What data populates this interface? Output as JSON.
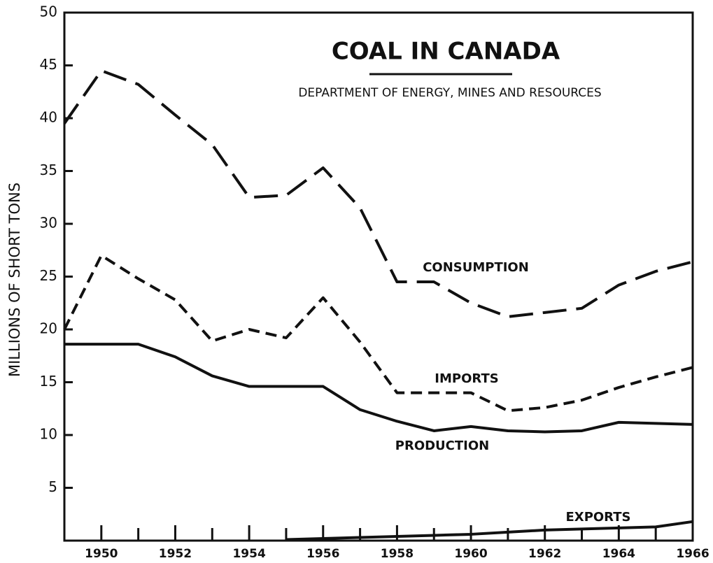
{
  "chart_data": {
    "type": "line",
    "title": "COAL IN CANADA",
    "subtitle": "DEPARTMENT OF ENERGY, MINES AND RESOURCES",
    "y_label": "MILLIONS OF SHORT TONS",
    "x": [
      1949,
      1950,
      1951,
      1952,
      1953,
      1954,
      1955,
      1956,
      1957,
      1958,
      1959,
      1960,
      1961,
      1962,
      1963,
      1964,
      1965,
      1966
    ],
    "series": [
      {
        "name": "CONSUMPTION",
        "color": "#111111",
        "line_style": "long-dash",
        "values": [
          39.5,
          44.5,
          43.2,
          40.3,
          37.5,
          32.5,
          32.7,
          35.3,
          31.5,
          24.5,
          24.5,
          22.5,
          21.2,
          21.6,
          22.0,
          24.2,
          25.5,
          26.4
        ]
      },
      {
        "name": "IMPORTS",
        "color": "#111111",
        "line_style": "short-dash",
        "values": [
          20.0,
          27.0,
          24.8,
          22.8,
          18.9,
          20.0,
          19.2,
          23.0,
          18.8,
          14.0,
          14.0,
          14.0,
          12.3,
          12.6,
          13.3,
          14.5,
          15.5,
          16.4
        ]
      },
      {
        "name": "PRODUCTION",
        "color": "#111111",
        "line_style": "solid",
        "values": [
          18.6,
          18.6,
          18.6,
          17.4,
          15.6,
          14.6,
          14.6,
          14.6,
          12.4,
          11.3,
          10.4,
          10.8,
          10.4,
          10.3,
          10.4,
          11.2,
          11.1,
          11.0
        ]
      },
      {
        "name": "EXPORTS",
        "color": "#111111",
        "line_style": "solid",
        "values": [
          null,
          null,
          null,
          null,
          null,
          null,
          0.1,
          0.2,
          0.3,
          0.4,
          0.5,
          0.6,
          0.8,
          1.0,
          1.1,
          1.2,
          1.3,
          1.8
        ]
      }
    ],
    "xlim": [
      1949,
      1966
    ],
    "xticks": [
      1950,
      1952,
      1954,
      1956,
      1958,
      1960,
      1962,
      1964,
      1966
    ],
    "xminorticks": [
      1951,
      1953,
      1955,
      1957,
      1959,
      1961,
      1963,
      1965
    ],
    "ylim": [
      0,
      50
    ],
    "yticks": [
      5,
      10,
      15,
      20,
      25,
      30,
      35,
      40,
      45,
      50
    ],
    "grid": false
  }
}
